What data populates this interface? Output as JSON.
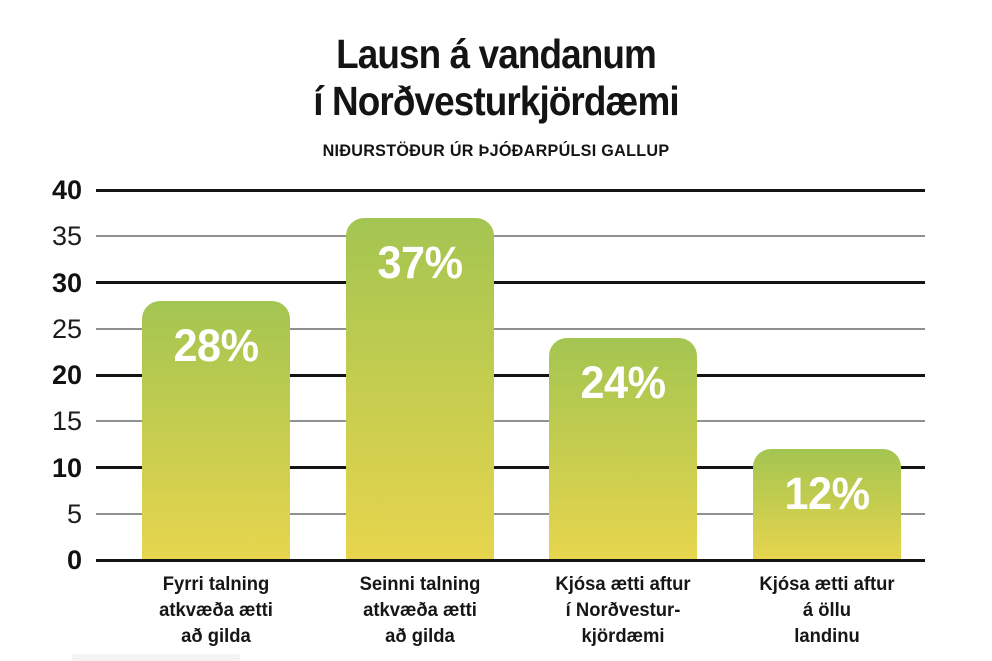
{
  "page": {
    "title_line1": "Lausn á vandanum",
    "title_line2": "í Norðvesturkjördæmi",
    "subtitle": "NIÐURSTÖÐUR ÚR ÞJÓÐARPÚLSI GALLUP"
  },
  "colors": {
    "bar_gradient_top": "#a3c551",
    "bar_gradient_bottom": "#e7d54d",
    "major_gridline": "#141414",
    "minor_gridline": "#909090",
    "value_label_text": "#ffffff",
    "text": "#161616"
  },
  "chart_data": {
    "type": "bar",
    "title": "Lausn á vandanum í Norðvesturkjördæmi",
    "subtitle": "NIÐURSTÖÐUR ÚR ÞJÓÐARPÚLSI GALLUP",
    "categories": [
      [
        "Fyrri talning",
        "atkvæða ætti",
        "að gilda"
      ],
      [
        "Seinni talning",
        "atkvæða ætti",
        "að gilda"
      ],
      [
        "Kjósa ætti aftur",
        "í Norðvestur-",
        "kjördæmi"
      ],
      [
        "Kjósa ætti aftur",
        "á öllu",
        "landinu"
      ]
    ],
    "values": [
      28,
      37,
      24,
      12
    ],
    "value_labels": [
      "28%",
      "37%",
      "24%",
      "12%"
    ],
    "xlabel": "",
    "ylabel": "",
    "ylim": [
      0,
      40
    ],
    "yticks": [
      0,
      5,
      10,
      15,
      20,
      25,
      30,
      35,
      40
    ],
    "major_yticks": [
      0,
      10,
      20,
      30,
      40
    ],
    "grid": "horizontal",
    "legend": "none",
    "bar_style": "vertical gradient, rounded top corners, white percentage label inside top of bar"
  }
}
